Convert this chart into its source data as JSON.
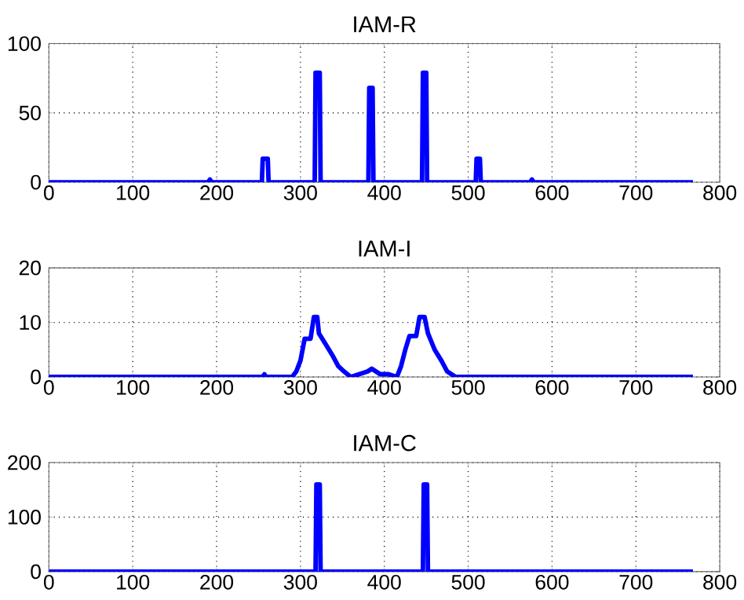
{
  "chart_data": [
    {
      "type": "line",
      "title": "IAM-R",
      "color": "#0000ff",
      "grid": true,
      "xlim": [
        0,
        800
      ],
      "ylim": [
        0,
        100
      ],
      "xticks": [
        0,
        100,
        200,
        300,
        400,
        500,
        600,
        700,
        800
      ],
      "yticks": [
        0,
        50,
        100
      ],
      "x": [
        0,
        190,
        192,
        194,
        254,
        255,
        261,
        262,
        317,
        318,
        323,
        324,
        381,
        382,
        386,
        387,
        445,
        446,
        450,
        451,
        509,
        510,
        514,
        515,
        574,
        576,
        578,
        768
      ],
      "values": [
        0,
        0,
        2,
        0,
        0,
        17,
        17,
        0,
        0,
        79,
        79,
        0,
        0,
        68,
        68,
        0,
        0,
        79,
        79,
        0,
        0,
        17,
        17,
        0,
        0,
        2,
        0,
        0
      ]
    },
    {
      "type": "line",
      "title": "IAM-I",
      "color": "#0000ff",
      "grid": true,
      "xlim": [
        0,
        800
      ],
      "ylim": [
        0,
        20
      ],
      "xticks": [
        0,
        100,
        200,
        300,
        400,
        500,
        600,
        700,
        800
      ],
      "yticks": [
        0,
        10,
        20
      ],
      "x": [
        0,
        255,
        257,
        259,
        290,
        295,
        300,
        305,
        312,
        316,
        320,
        322,
        330,
        338,
        345,
        352,
        360,
        370,
        380,
        385,
        390,
        395,
        405,
        415,
        420,
        425,
        430,
        438,
        442,
        448,
        452,
        460,
        468,
        475,
        485,
        768
      ],
      "values": [
        0,
        0,
        0.5,
        0,
        0,
        1,
        3,
        7,
        7,
        11,
        11,
        8,
        6,
        4,
        2,
        1,
        0,
        0.5,
        1,
        1.5,
        1,
        0.5,
        0.5,
        0,
        2,
        5,
        7.5,
        7.5,
        11,
        11,
        8,
        5,
        3,
        1,
        0,
        0
      ]
    },
    {
      "type": "line",
      "title": "IAM-C",
      "color": "#0000ff",
      "grid": true,
      "xlim": [
        0,
        800
      ],
      "ylim": [
        0,
        200
      ],
      "xticks": [
        0,
        100,
        200,
        300,
        400,
        500,
        600,
        700,
        800
      ],
      "yticks": [
        0,
        100,
        200
      ],
      "x": [
        0,
        318,
        319,
        323,
        324,
        446,
        447,
        451,
        452,
        768
      ],
      "values": [
        0,
        0,
        160,
        160,
        0,
        0,
        160,
        160,
        0,
        0
      ]
    }
  ]
}
